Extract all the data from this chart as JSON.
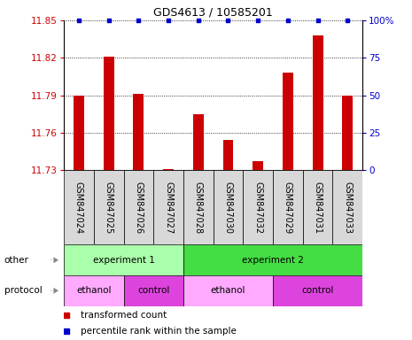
{
  "title": "GDS4613 / 10585201",
  "samples": [
    "GSM847024",
    "GSM847025",
    "GSM847026",
    "GSM847027",
    "GSM847028",
    "GSM847030",
    "GSM847032",
    "GSM847029",
    "GSM847031",
    "GSM847033"
  ],
  "bar_values": [
    11.79,
    11.821,
    11.791,
    11.731,
    11.775,
    11.754,
    11.737,
    11.808,
    11.838,
    11.79
  ],
  "ylim_left": [
    11.73,
    11.85
  ],
  "ylim_right": [
    0,
    100
  ],
  "yticks_left": [
    11.73,
    11.76,
    11.79,
    11.82,
    11.85
  ],
  "yticks_right": [
    0,
    25,
    50,
    75,
    100
  ],
  "ytick_labels_left": [
    "11.73",
    "11.76",
    "11.79",
    "11.82",
    "11.85"
  ],
  "ytick_labels_right": [
    "0",
    "25",
    "50",
    "75",
    "100%"
  ],
  "bar_color": "#cc0000",
  "dot_color": "#0000cc",
  "bar_width": 0.35,
  "exp1_color": "#aaffaa",
  "exp2_color": "#44dd44",
  "eth_color": "#ffaaff",
  "ctrl_color": "#dd44dd",
  "legend_tc_color": "#cc0000",
  "legend_pr_color": "#0000cc",
  "title_fontsize": 9,
  "tick_fontsize": 7.5,
  "label_fontsize": 7,
  "row_fontsize": 7.5
}
